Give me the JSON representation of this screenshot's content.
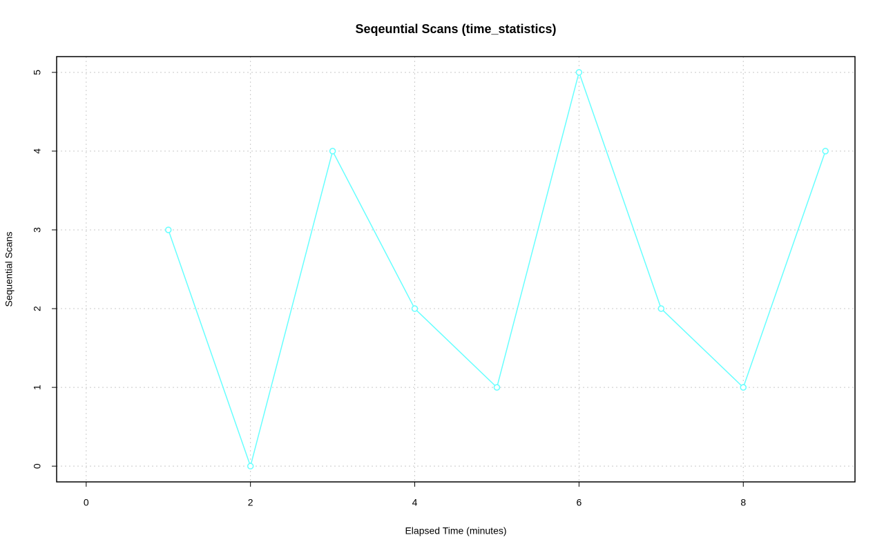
{
  "chart_data": {
    "type": "line",
    "title": "Seqeuntial Scans (time_statistics)",
    "x_label": "Elapsed Time (minutes)",
    "y_label": "Sequential Scans",
    "x": [
      1,
      2,
      3,
      4,
      5,
      6,
      7,
      8,
      9
    ],
    "series": [
      {
        "name": "Sequential Scans",
        "color": "#66ffff",
        "values": [
          3,
          0,
          4,
          2,
          1,
          5,
          2,
          1,
          4
        ]
      }
    ],
    "xlim": [
      -0.36,
      9.36
    ],
    "xticks": [
      0,
      2,
      4,
      6,
      8
    ],
    "ylim": [
      -0.2,
      5.2
    ],
    "yticks": [
      0,
      1,
      2,
      3,
      4,
      5
    ],
    "grid": true
  }
}
